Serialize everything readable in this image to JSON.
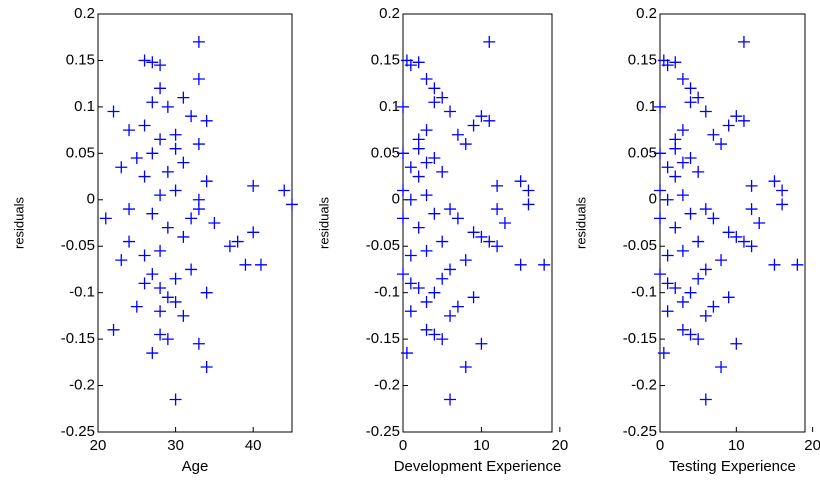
{
  "chart_data": [
    {
      "type": "scatter",
      "xlabel": "Age",
      "ylabel": "residuals",
      "color": "#0000ff",
      "xlim": [
        20,
        45
      ],
      "xticks": [
        20,
        30,
        40
      ],
      "ylim": [
        -0.25,
        0.2
      ],
      "yticks": [
        -0.25,
        -0.2,
        -0.15,
        -0.1,
        -0.05,
        0,
        0.05,
        0.1,
        0.15,
        0.2
      ],
      "x": [
        33,
        26,
        27,
        28,
        33,
        28,
        31,
        29,
        22,
        32,
        34,
        26,
        24,
        30,
        28,
        33,
        27,
        25,
        31,
        23,
        29,
        26,
        34,
        40,
        30,
        44,
        28,
        33,
        45,
        24,
        27,
        32,
        21,
        35,
        29,
        40,
        31,
        24,
        37,
        28,
        26,
        23,
        39,
        41,
        32,
        27,
        30,
        26,
        28,
        34,
        29,
        30,
        25,
        28,
        31,
        22,
        28,
        29,
        33,
        27,
        34,
        30,
        27,
        38,
        30,
        33
      ],
      "y": [
        0.17,
        0.15,
        0.148,
        0.145,
        0.13,
        0.12,
        0.11,
        0.1,
        0.095,
        0.09,
        0.085,
        0.08,
        0.075,
        0.07,
        0.065,
        0.06,
        0.05,
        0.045,
        0.04,
        0.035,
        0.03,
        0.025,
        0.02,
        0.015,
        0.01,
        0.01,
        0.005,
        0,
        -0.005,
        -0.01,
        -0.015,
        -0.02,
        -0.02,
        -0.025,
        -0.03,
        -0.035,
        -0.04,
        -0.045,
        -0.05,
        -0.055,
        -0.06,
        -0.065,
        -0.07,
        -0.07,
        -0.075,
        -0.08,
        -0.085,
        -0.09,
        -0.095,
        -0.1,
        -0.105,
        -0.11,
        -0.115,
        -0.12,
        -0.125,
        -0.14,
        -0.145,
        -0.15,
        -0.155,
        -0.165,
        -0.18,
        -0.215,
        0.105,
        -0.045,
        0.055,
        -0.01
      ]
    },
    {
      "type": "scatter",
      "xlabel": "Development Experience",
      "ylabel": "residuals",
      "color": "#0000ff",
      "xlim": [
        0,
        19
      ],
      "xticks": [
        0,
        10,
        20
      ],
      "ylim": [
        -0.25,
        0.2
      ],
      "yticks": [
        -0.25,
        -0.2,
        -0.15,
        -0.1,
        -0.05,
        0,
        0.05,
        0.1,
        0.15,
        0.2
      ],
      "x": [
        11,
        0.5,
        2,
        1,
        3,
        4,
        5,
        0,
        6,
        10,
        11,
        9,
        3,
        7,
        2,
        8,
        0,
        4,
        3,
        1,
        5,
        2,
        15,
        12,
        0,
        16,
        3,
        1,
        16,
        6,
        4,
        0,
        7,
        13,
        2,
        9,
        10,
        5,
        12,
        3,
        1,
        8,
        15,
        18,
        6,
        0,
        5,
        1,
        2,
        4,
        9,
        3,
        7,
        1,
        6,
        3,
        4,
        5,
        10,
        0.5,
        8,
        6,
        4,
        11,
        2,
        12
      ],
      "y": [
        0.17,
        0.15,
        0.148,
        0.145,
        0.13,
        0.12,
        0.11,
        0.1,
        0.095,
        0.09,
        0.085,
        0.08,
        0.075,
        0.07,
        0.065,
        0.06,
        0.05,
        0.045,
        0.04,
        0.035,
        0.03,
        0.025,
        0.02,
        0.015,
        0.01,
        0.01,
        0.005,
        0,
        -0.005,
        -0.01,
        -0.015,
        -0.02,
        -0.02,
        -0.025,
        -0.03,
        -0.035,
        -0.04,
        -0.045,
        -0.05,
        -0.055,
        -0.06,
        -0.065,
        -0.07,
        -0.07,
        -0.075,
        -0.08,
        -0.085,
        -0.09,
        -0.095,
        -0.1,
        -0.105,
        -0.11,
        -0.115,
        -0.12,
        -0.125,
        -0.14,
        -0.145,
        -0.15,
        -0.155,
        -0.165,
        -0.18,
        -0.215,
        0.105,
        -0.045,
        0.055,
        -0.01
      ]
    },
    {
      "type": "scatter",
      "xlabel": "Testing Experience",
      "ylabel": "residuals",
      "color": "#0000ff",
      "xlim": [
        0,
        19
      ],
      "xticks": [
        0,
        10,
        20
      ],
      "ylim": [
        -0.25,
        0.2
      ],
      "yticks": [
        -0.25,
        -0.2,
        -0.15,
        -0.1,
        -0.05,
        0,
        0.05,
        0.1,
        0.15,
        0.2
      ],
      "x": [
        11,
        0.5,
        2,
        1,
        3,
        4,
        5,
        0,
        6,
        10,
        11,
        9,
        3,
        7,
        2,
        8,
        0,
        4,
        3,
        1,
        5,
        2,
        15,
        12,
        0,
        16,
        3,
        1,
        16,
        6,
        4,
        0,
        7,
        13,
        2,
        9,
        10,
        5,
        12,
        3,
        1,
        8,
        15,
        18,
        6,
        0,
        5,
        1,
        2,
        4,
        9,
        3,
        7,
        1,
        6,
        3,
        4,
        5,
        10,
        0.5,
        8,
        6,
        4,
        11,
        2,
        12
      ],
      "y": [
        0.17,
        0.15,
        0.148,
        0.145,
        0.13,
        0.12,
        0.11,
        0.1,
        0.095,
        0.09,
        0.085,
        0.08,
        0.075,
        0.07,
        0.065,
        0.06,
        0.05,
        0.045,
        0.04,
        0.035,
        0.03,
        0.025,
        0.02,
        0.015,
        0.01,
        0.01,
        0.005,
        0,
        -0.005,
        -0.01,
        -0.015,
        -0.02,
        -0.02,
        -0.025,
        -0.03,
        -0.035,
        -0.04,
        -0.045,
        -0.05,
        -0.055,
        -0.06,
        -0.065,
        -0.07,
        -0.07,
        -0.075,
        -0.08,
        -0.085,
        -0.09,
        -0.095,
        -0.1,
        -0.105,
        -0.11,
        -0.115,
        -0.12,
        -0.125,
        -0.14,
        -0.145,
        -0.15,
        -0.155,
        -0.165,
        -0.18,
        -0.215,
        0.105,
        -0.045,
        0.055,
        -0.01
      ]
    }
  ]
}
